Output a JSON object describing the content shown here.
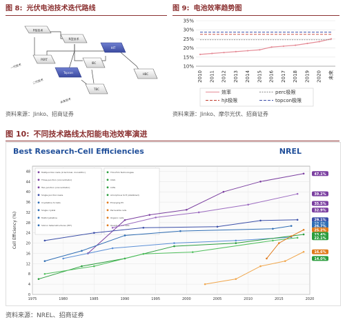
{
  "fig8": {
    "caption_num": "图 8:",
    "caption_text": "光伏电池技术迭代路线",
    "nodes": [
      {
        "label": "P型技术"
      },
      {
        "label": "N型技术"
      },
      {
        "label": "PERT"
      },
      {
        "label": "HIT"
      },
      {
        "label": "Topcon"
      },
      {
        "label": "IBC"
      },
      {
        "label": "HBC"
      },
      {
        "label": "TBC"
      }
    ],
    "side_labels": [
      "一代技术",
      "二代技术",
      "未来技术"
    ],
    "source": "资料来源：Jinko、招商证券"
  },
  "fig9": {
    "caption_num": "图 9:",
    "caption_text": "电池效率趋势图",
    "legend": [
      "效率",
      "perc极限",
      "hjt极限",
      "topcon极限"
    ],
    "source": "资料来源：Jinko、摩尔光伏、招商证券"
  },
  "chart_data": {
    "type": "line",
    "categories": [
      "2010",
      "2011",
      "2012",
      "2013",
      "2014",
      "2015",
      "2016",
      "2017",
      "2018",
      "2019",
      "2020",
      "未来"
    ],
    "ylim": [
      10,
      35
    ],
    "yticks": [
      "10%",
      "15%",
      "20%",
      "25%",
      "30%",
      "35%"
    ],
    "series": [
      {
        "name": "效率",
        "values": [
          16.5,
          17.0,
          17.5,
          18.0,
          18.5,
          19.0,
          20.5,
          21.0,
          21.5,
          22.5,
          23.5,
          25.0
        ],
        "color": "#e58b96"
      },
      {
        "name": "perc极限",
        "values": [
          24.5,
          24.5,
          24.5,
          24.5,
          24.5,
          24.5,
          24.5,
          24.5,
          24.5,
          24.5,
          24.5,
          24.5
        ],
        "color": "#888888"
      },
      {
        "name": "hjt极限",
        "values": [
          27.5,
          27.5,
          27.5,
          27.5,
          27.5,
          27.5,
          27.5,
          27.5,
          27.5,
          27.5,
          27.5,
          27.5
        ],
        "color": "#c0392b"
      },
      {
        "name": "topcon极限",
        "values": [
          28.7,
          28.7,
          28.7,
          28.7,
          28.7,
          28.7,
          28.7,
          28.7,
          28.7,
          28.7,
          28.7,
          28.7
        ],
        "color": "#3a4ea8"
      }
    ],
    "grid": true
  },
  "fig10": {
    "caption_num": "图 10:",
    "caption_text": "不同技术路线太阳能电池效率演进",
    "chart_title": "Best Research-Cell Efficiencies",
    "logo": "NREL",
    "ylabel": "Cell Efficiency (%)",
    "ylim": [
      0,
      50
    ],
    "yticks": [
      "0",
      "4",
      "8",
      "12",
      "16",
      "20",
      "24",
      "28",
      "32",
      "36",
      "40",
      "44",
      "48"
    ],
    "xlim": [
      1975,
      2020
    ],
    "xticks": [
      "1975",
      "1980",
      "1985",
      "1990",
      "1995",
      "2000",
      "2005",
      "2010",
      "2015",
      "2020"
    ],
    "legend_left": [
      {
        "label": "Multijunction Cells (2-terminal, monolithic)",
        "color": "#7b3fa0"
      },
      {
        "label": "Three-junction (concentrator)",
        "color": "#7b3fa0"
      },
      {
        "label": "Two-junction (concentrator)",
        "color": "#7b3fa0"
      },
      {
        "label": "Single-Junction GaAs",
        "color": "#3a4ea8"
      },
      {
        "label": "Crystalline Si Cells",
        "color": "#2e6db4"
      },
      {
        "label": "Single crystal",
        "color": "#2e6db4"
      },
      {
        "label": "Multicrystalline",
        "color": "#2e6db4"
      },
      {
        "label": "Silicon heterostructures (HIT)",
        "color": "#2e6db4"
      }
    ],
    "legend_right": [
      {
        "label": "Thin-Film Technologies",
        "color": "#2a9d3c"
      },
      {
        "label": "CIGS",
        "color": "#2a9d3c"
      },
      {
        "label": "CdTe",
        "color": "#2a9d3c"
      },
      {
        "label": "Amorphous Si:H (stabilized)",
        "color": "#2a9d3c"
      },
      {
        "label": "Emerging PV",
        "color": "#e07b1c"
      },
      {
        "label": "Perovskite cells",
        "color": "#e07b1c"
      },
      {
        "label": "Organic cells",
        "color": "#e07b1c"
      },
      {
        "label": "Quantum dot cells",
        "color": "#e07b1c"
      }
    ],
    "badges": [
      {
        "text": "47.1%",
        "value": 47.1,
        "color": "#7b3fa0"
      },
      {
        "text": "39.2%",
        "value": 39.2,
        "color": "#7b3fa0"
      },
      {
        "text": "35.5%",
        "value": 35.5,
        "color": "#7b3fa0"
      },
      {
        "text": "32.9%",
        "value": 32.9,
        "color": "#7b3fa0"
      },
      {
        "text": "29.1%",
        "value": 29.1,
        "color": "#3a4ea8"
      },
      {
        "text": "27.6%",
        "value": 27.6,
        "color": "#2e6db4"
      },
      {
        "text": "26.7%",
        "value": 26.7,
        "color": "#2e6db4"
      },
      {
        "text": "25.2%",
        "value": 25.2,
        "color": "#e07b1c"
      },
      {
        "text": "23.4%",
        "value": 23.4,
        "color": "#2a9d3c"
      },
      {
        "text": "22.1%",
        "value": 22.1,
        "color": "#2a9d3c"
      },
      {
        "text": "16.6%",
        "value": 16.6,
        "color": "#e07b1c"
      },
      {
        "text": "14.0%",
        "value": 14.0,
        "color": "#2a9d3c"
      }
    ],
    "source": "资料来源：NREL、招商证券"
  }
}
